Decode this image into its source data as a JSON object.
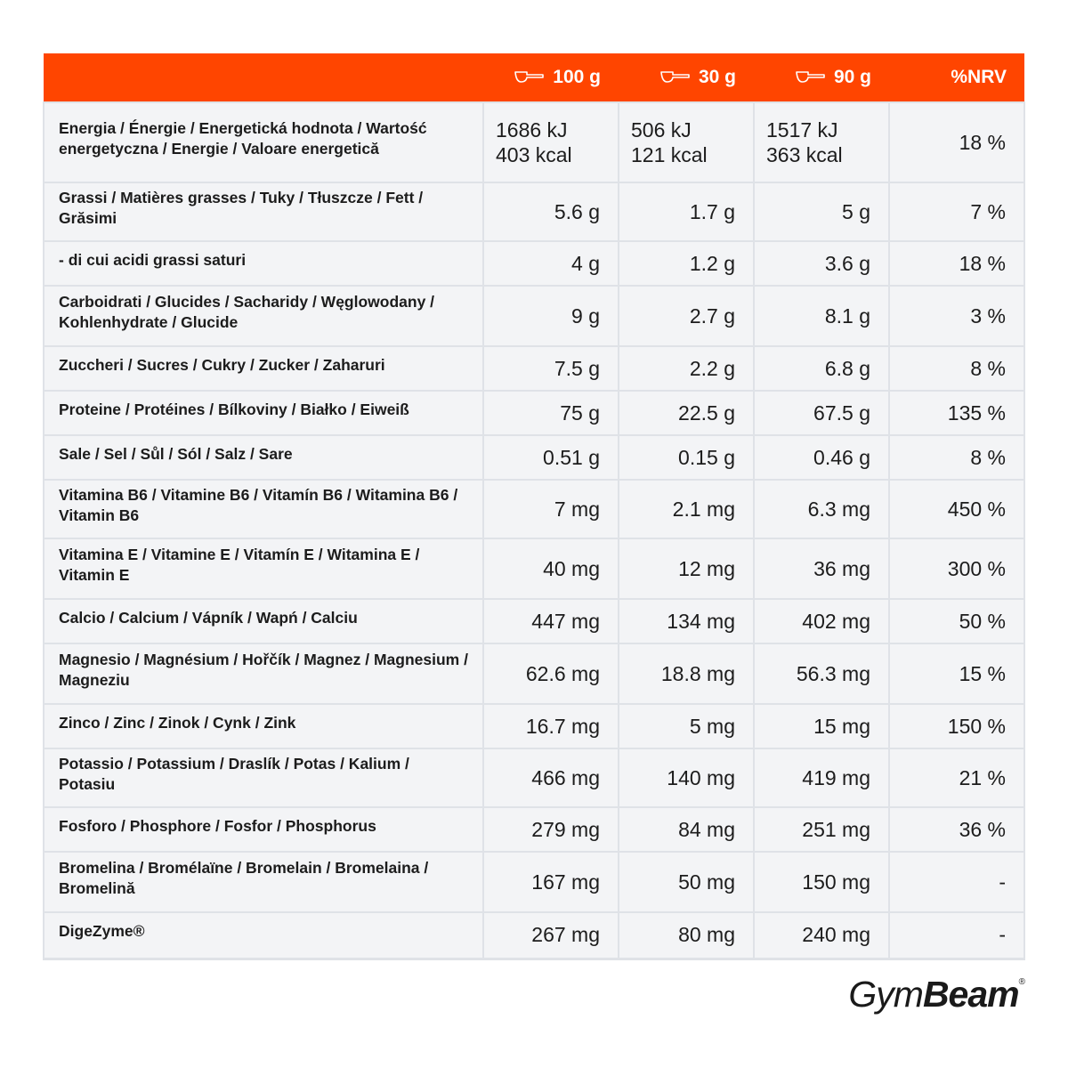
{
  "header": {
    "col_100": "100 g",
    "col_30": "30 g",
    "col_90": "90 g",
    "col_nrv": "%NRV",
    "scoop_icon": "scoop-icon",
    "background_color": "#ff4500",
    "text_color": "#ffffff"
  },
  "rows": [
    {
      "name": "Energia / Énergie / Energetická hodnota / Wartość energetyczna / Energie / Valoare energetică",
      "v100": [
        "1686 kJ",
        "403 kcal"
      ],
      "v30": [
        "506 kJ",
        "121 kcal"
      ],
      "v90": [
        "1517 kJ",
        "363 kcal"
      ],
      "nrv": "18 %"
    },
    {
      "name": "Grassi / Matières grasses / Tuky / Tłuszcze / Fett / Grăsimi",
      "v100": "5.6 g",
      "v30": "1.7 g",
      "v90": "5 g",
      "nrv": "7 %"
    },
    {
      "name": "- di cui acidi grassi saturi",
      "v100": "4 g",
      "v30": "1.2 g",
      "v90": "3.6 g",
      "nrv": "18 %"
    },
    {
      "name": "Carboidrati / Glucides / Sacharidy / Węglowodany / Kohlenhydrate / Glucide",
      "v100": "9 g",
      "v30": "2.7 g",
      "v90": "8.1 g",
      "nrv": "3 %"
    },
    {
      "name": "Zuccheri / Sucres / Cukry / Zucker / Zaharuri",
      "v100": "7.5 g",
      "v30": "2.2 g",
      "v90": "6.8 g",
      "nrv": "8 %"
    },
    {
      "name": "Proteine / Protéines / Bílkoviny / Białko / Eiweiß",
      "v100": "75 g",
      "v30": "22.5 g",
      "v90": "67.5 g",
      "nrv": "135 %"
    },
    {
      "name": "Sale / Sel / Sůl / Sól / Salz / Sare",
      "v100": "0.51 g",
      "v30": "0.15 g",
      "v90": "0.46 g",
      "nrv": "8 %"
    },
    {
      "name": "Vitamina B6 / Vitamine B6 / Vitamín B6 / Witamina B6 / Vitamin B6",
      "v100": "7 mg",
      "v30": "2.1 mg",
      "v90": "6.3 mg",
      "nrv": "450 %"
    },
    {
      "name": "Vitamina E / Vitamine E / Vitamín E / Witamina E / Vitamin E",
      "v100": "40 mg",
      "v30": "12 mg",
      "v90": "36 mg",
      "nrv": "300 %"
    },
    {
      "name": "Calcio / Calcium / Vápník / Wapń / Calciu",
      "v100": "447 mg",
      "v30": "134 mg",
      "v90": "402 mg",
      "nrv": "50 %"
    },
    {
      "name": "Magnesio / Magnésium / Hořčík / Magnez / Magnesium / Magneziu",
      "v100": "62.6 mg",
      "v30": "18.8 mg",
      "v90": "56.3 mg",
      "nrv": "15 %"
    },
    {
      "name": "Zinco / Zinc / Zinok / Cynk / Zink",
      "v100": "16.7 mg",
      "v30": "5 mg",
      "v90": "15 mg",
      "nrv": "150 %"
    },
    {
      "name": "Potassio / Potassium / Draslík / Potas / Kalium / Potasiu",
      "v100": "466 mg",
      "v30": "140 mg",
      "v90": "419 mg",
      "nrv": "21 %"
    },
    {
      "name": "Fosforo / Phosphore / Fosfor / Phosphorus",
      "v100": "279 mg",
      "v30": "84 mg",
      "v90": "251 mg",
      "nrv": "36 %"
    },
    {
      "name": "Bromelina / Bromélaïne / Bromelain / Bromelaina / Bromelină",
      "v100": "167 mg",
      "v30": "50 mg",
      "v90": "150 mg",
      "nrv": "-"
    },
    {
      "name": "DigeZyme®",
      "v100": "267 mg",
      "v30": "80 mg",
      "v90": "240 mg",
      "nrv": "-"
    }
  ],
  "brand": {
    "light": "Gym",
    "bold": "Beam",
    "mark": "®"
  }
}
